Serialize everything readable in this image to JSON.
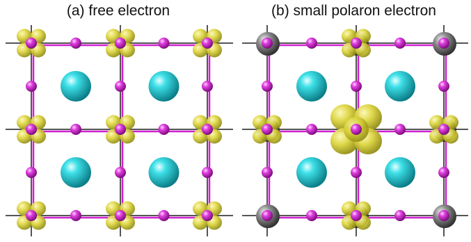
{
  "panels": [
    {
      "id": "free-electron",
      "title": "(a) free electron",
      "electron_density": "delocalized",
      "metal_sites_visible": false
    },
    {
      "id": "small-polaron-electron",
      "title": "(b) small polaron electron",
      "electron_density": "localized",
      "metal_sites_visible": true
    }
  ],
  "colors": {
    "background": "#ffffff",
    "bond": "#d020d0",
    "frame_line": "#555555",
    "oxygen": "#d32bd3",
    "cation": "#24c4cc",
    "metal": "#7a7a7a",
    "electron_density": "#d8d020"
  },
  "atoms": {
    "oxygen": "magenta-sphere",
    "large_cation": "cyan-sphere",
    "metal": "gray-sphere",
    "isosurface": "yellow-isosurface"
  }
}
